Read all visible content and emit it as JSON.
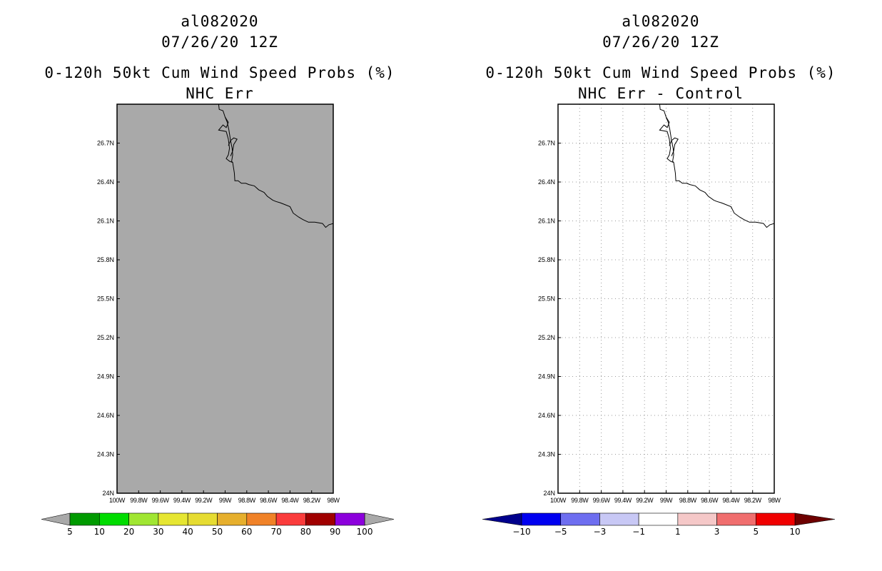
{
  "panels": [
    {
      "storm_id": "al082020",
      "date_label": "07/26/20 12Z",
      "main_title": "0-120h 50kt Cum Wind Speed Probs (%)",
      "sub_title": "NHC Err",
      "background": "#a9a9a9",
      "grid": false
    },
    {
      "storm_id": "al082020",
      "date_label": "07/26/20 12Z",
      "main_title": "0-120h 50kt Cum Wind Speed Probs (%)",
      "sub_title": "NHC Err - Control",
      "background": "#ffffff",
      "grid": true
    }
  ],
  "chart_data": [
    {
      "type": "map",
      "title": "0-120h 50kt Cum Wind Speed Probs (%)",
      "subtitle": "NHC Err",
      "x_range": [
        -100,
        -98
      ],
      "y_range": [
        24,
        27
      ],
      "x_tick_labels": [
        "100W",
        "99.8W",
        "99.6W",
        "99.4W",
        "99.2W",
        "99W",
        "98.8W",
        "98.6W",
        "98.4W",
        "98.2W",
        "98W"
      ],
      "y_tick_labels": [
        "24N",
        "24.3N",
        "24.6N",
        "24.9N",
        "25.2N",
        "25.5N",
        "25.8N",
        "26.1N",
        "26.4N",
        "26.7N"
      ],
      "field": "no data (uniform gray)",
      "colorbar": {
        "labels": [
          "5",
          "10",
          "20",
          "30",
          "40",
          "50",
          "60",
          "70",
          "80",
          "90",
          "100"
        ],
        "colors": [
          "#009a00",
          "#00dc00",
          "#a0e632",
          "#e6e632",
          "#e6dc32",
          "#e6af2d",
          "#f08228",
          "#fa3c3c",
          "#a00000",
          "#8c00dc"
        ],
        "under_color": "#a9a9a9",
        "over_color": "#a9a9a9"
      }
    },
    {
      "type": "map",
      "title": "0-120h 50kt Cum Wind Speed Probs (%)",
      "subtitle": "NHC Err - Control",
      "x_range": [
        -100,
        -98
      ],
      "y_range": [
        24,
        27
      ],
      "x_tick_labels": [
        "100W",
        "99.8W",
        "99.6W",
        "99.4W",
        "99.2W",
        "99W",
        "98.8W",
        "98.6W",
        "98.4W",
        "98.2W",
        "98W"
      ],
      "y_tick_labels": [
        "24N",
        "24.3N",
        "24.6N",
        "24.9N",
        "25.2N",
        "25.5N",
        "25.8N",
        "26.1N",
        "26.4N",
        "26.7N"
      ],
      "field": "no difference (white)",
      "colorbar": {
        "labels": [
          "-10",
          "-5",
          "-3",
          "-1",
          "1",
          "3",
          "5",
          "10"
        ],
        "colors": [
          "#0000f0",
          "#6e6ef0",
          "#c8c8f5",
          "#ffffff",
          "#f5c8c8",
          "#f06e6e",
          "#f00000"
        ],
        "under_color": "#00008c",
        "over_color": "#6e0000"
      }
    }
  ],
  "coastline": [
    [
      -99.06,
      27.0
    ],
    [
      -99.055,
      26.96
    ],
    [
      -99.02,
      26.95
    ],
    [
      -99.0,
      26.9
    ],
    [
      -98.97,
      26.86
    ],
    [
      -98.99,
      26.82
    ],
    [
      -99.02,
      26.84
    ],
    [
      -99.06,
      26.8
    ],
    [
      -98.99,
      26.79
    ],
    [
      -98.97,
      26.73
    ],
    [
      -98.96,
      26.66
    ],
    [
      -98.97,
      26.61
    ],
    [
      -98.99,
      26.58
    ],
    [
      -98.96,
      26.56
    ],
    [
      -98.93,
      26.55
    ],
    [
      -98.915,
      26.47
    ],
    [
      -98.91,
      26.41
    ],
    [
      -98.88,
      26.41
    ],
    [
      -98.85,
      26.39
    ],
    [
      -98.81,
      26.39
    ],
    [
      -98.78,
      26.38
    ],
    [
      -98.73,
      26.37
    ],
    [
      -98.69,
      26.34
    ],
    [
      -98.64,
      26.32
    ],
    [
      -98.61,
      26.29
    ],
    [
      -98.56,
      26.26
    ],
    [
      -98.53,
      26.25
    ],
    [
      -98.49,
      26.24
    ],
    [
      -98.46,
      26.23
    ],
    [
      -98.4,
      26.21
    ],
    [
      -98.37,
      26.16
    ],
    [
      -98.32,
      26.13
    ],
    [
      -98.28,
      26.11
    ],
    [
      -98.23,
      26.09
    ],
    [
      -98.17,
      26.09
    ],
    [
      -98.1,
      26.08
    ],
    [
      -98.07,
      26.05
    ],
    [
      -98.04,
      26.07
    ],
    [
      -98.0,
      26.08
    ]
  ],
  "coastline_branch": [
    [
      -99.0,
      26.9
    ],
    [
      -98.98,
      26.86
    ],
    [
      -98.965,
      26.8
    ],
    [
      -98.95,
      26.72
    ],
    [
      -98.935,
      26.66
    ],
    [
      -98.93,
      26.61
    ],
    [
      -98.94,
      26.56
    ],
    [
      -98.93,
      26.55
    ]
  ],
  "coastline_spit": [
    [
      -98.97,
      26.68
    ],
    [
      -98.95,
      26.72
    ],
    [
      -98.92,
      26.74
    ],
    [
      -98.89,
      26.73
    ],
    [
      -98.92,
      26.69
    ],
    [
      -98.93,
      26.64
    ],
    [
      -98.95,
      26.6
    ]
  ]
}
